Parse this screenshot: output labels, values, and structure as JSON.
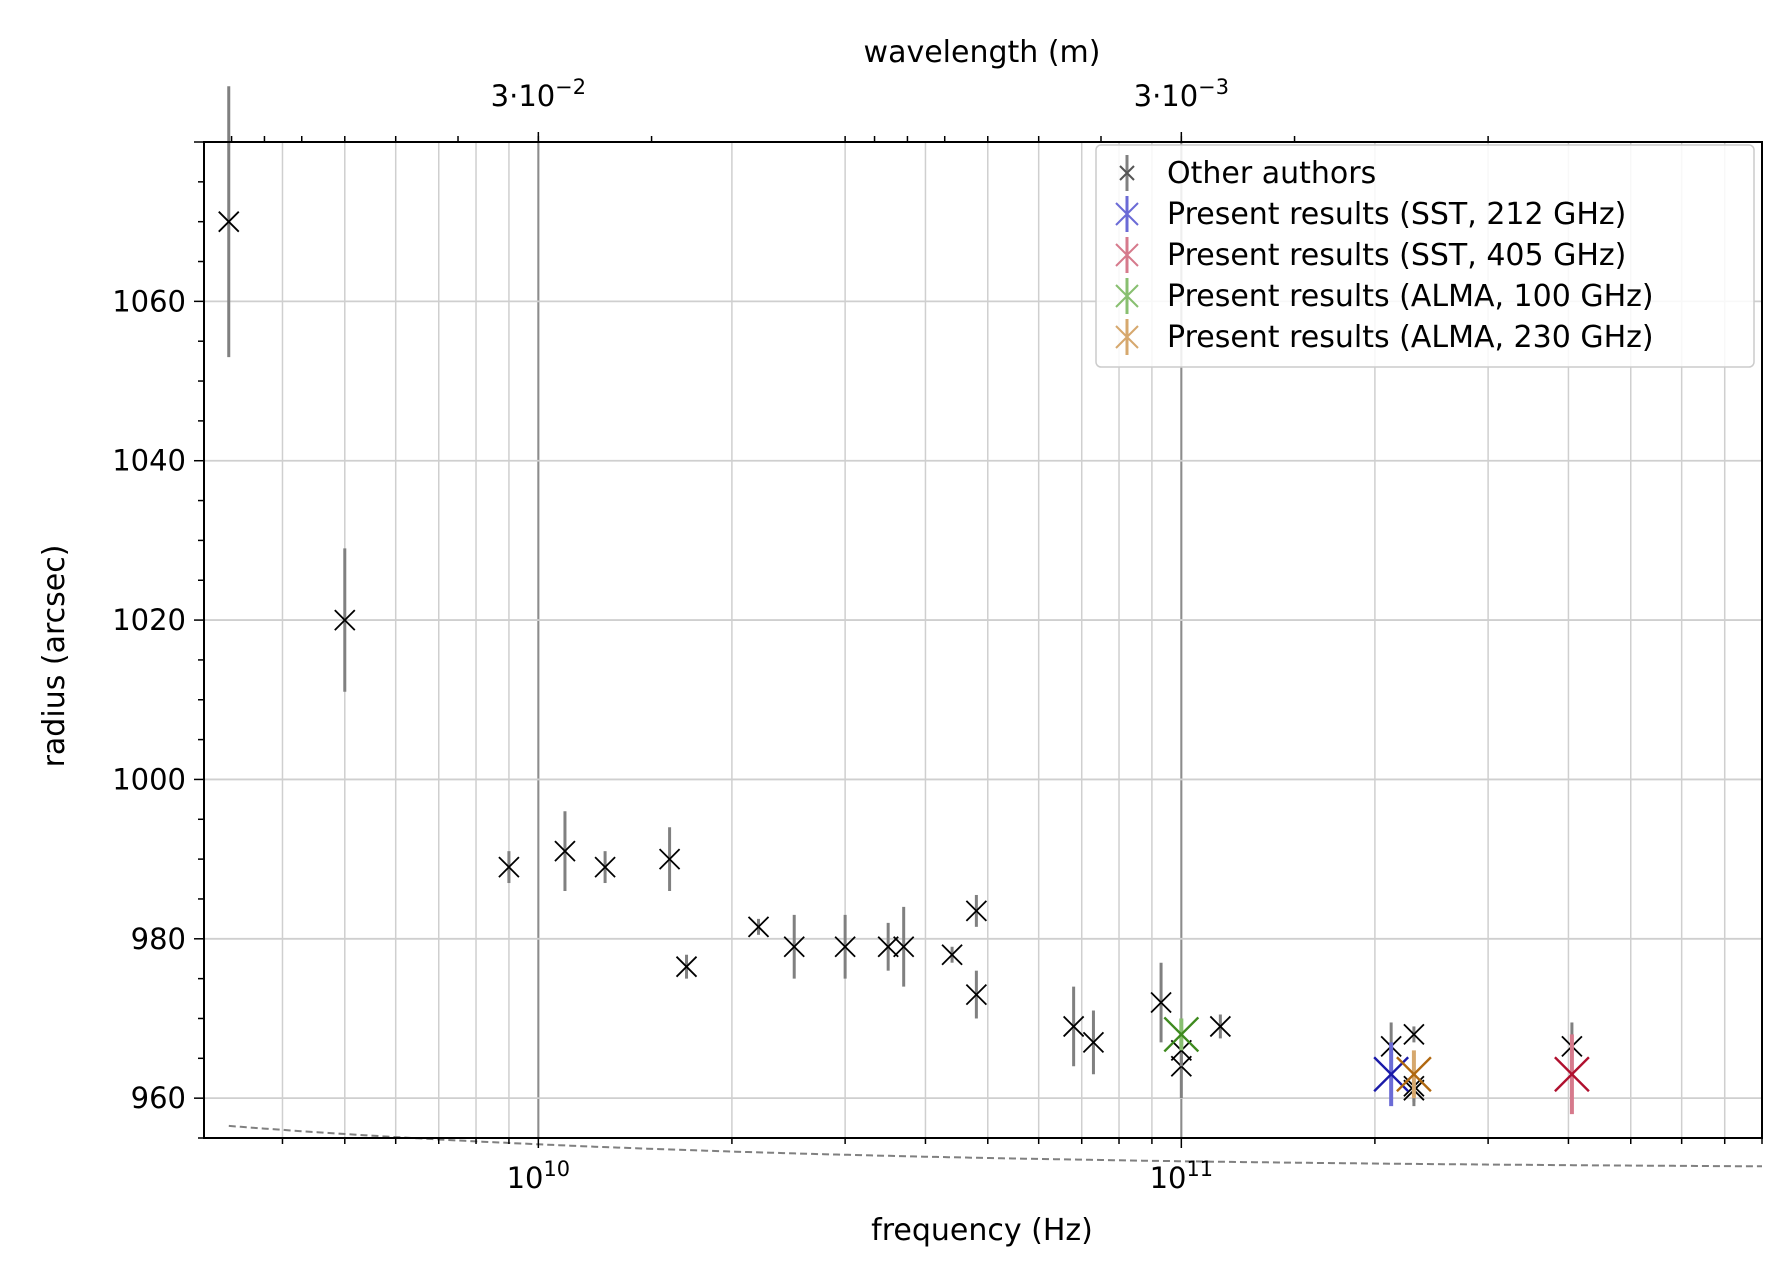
{
  "chart_data": {
    "type": "scatter",
    "xscale": "log",
    "xlim": [
      3300000000.0,
      800000000000.0
    ],
    "ylim": [
      955,
      1080
    ],
    "xlabel": "frequency (Hz)",
    "ylabel": "radius (arcsec)",
    "top_xlabel": "wavelength (m)",
    "y_ticks": [
      960,
      980,
      1000,
      1020,
      1040,
      1060
    ],
    "x_major_ticks": [
      {
        "value": 10000000000.0,
        "label_base": "10",
        "label_exp": "10"
      },
      {
        "value": 100000000000.0,
        "label_base": "10",
        "label_exp": "11"
      }
    ],
    "top_ticks": [
      {
        "freq": 10000000000.0,
        "label_base": "3·10",
        "label_exp": "−2"
      },
      {
        "freq": 100000000000.0,
        "label_base": "3·10",
        "label_exp": "−3"
      }
    ],
    "grid": true,
    "legend_position": "upper-right",
    "fit_curve": {
      "style": "dashed",
      "color": "#808080",
      "a": 951.1,
      "b": 96800000000.0,
      "p": 0.5
    },
    "series": [
      {
        "name": "Other authors",
        "color": "#000000",
        "errcolor": "#808080",
        "marker_size": "small",
        "points": [
          {
            "x": 3300000000.0,
            "y": 1070,
            "yerr": 17
          },
          {
            "x": 5000000000.0,
            "y": 1020,
            "yerr": 9
          },
          {
            "x": 9000000000.0,
            "y": 989,
            "yerr": 2
          },
          {
            "x": 11000000000.0,
            "y": 991,
            "yerr": 5
          },
          {
            "x": 12700000000.0,
            "y": 989,
            "yerr": 2
          },
          {
            "x": 16000000000.0,
            "y": 990,
            "yerr": 4
          },
          {
            "x": 17000000000.0,
            "y": 976.5,
            "yerr": 1.5
          },
          {
            "x": 22000000000.0,
            "y": 981.5,
            "yerr": 1
          },
          {
            "x": 25000000000.0,
            "y": 979,
            "yerr": 4
          },
          {
            "x": 30000000000.0,
            "y": 979,
            "yerr": 4
          },
          {
            "x": 35000000000.0,
            "y": 979,
            "yerr": 3
          },
          {
            "x": 37000000000.0,
            "y": 979,
            "yerr": 5
          },
          {
            "x": 44000000000.0,
            "y": 978,
            "yerr": 1
          },
          {
            "x": 48000000000.0,
            "y": 983.5,
            "yerr": 2
          },
          {
            "x": 48000000000.0,
            "y": 973,
            "yerr": 3
          },
          {
            "x": 68000000000.0,
            "y": 969,
            "yerr": 5
          },
          {
            "x": 73000000000.0,
            "y": 967,
            "yerr": 4
          },
          {
            "x": 93000000000.0,
            "y": 972,
            "yerr": 5
          },
          {
            "x": 100000000000.0,
            "y": 964,
            "yerr": 4
          },
          {
            "x": 100000000000.0,
            "y": 966,
            "yerr": 2
          },
          {
            "x": 115000000000.0,
            "y": 969,
            "yerr": 1.5
          },
          {
            "x": 212000000000.0,
            "y": 966.5,
            "yerr": 3
          },
          {
            "x": 230000000000.0,
            "y": 968,
            "yerr": 1
          },
          {
            "x": 230000000000.0,
            "y": 961,
            "yerr": 2
          },
          {
            "x": 230000000000.0,
            "y": 961.5,
            "yerr": 2
          },
          {
            "x": 405000000000.0,
            "y": 966.5,
            "yerr": 3
          }
        ]
      },
      {
        "name": "Present results (SST, 212 GHz)",
        "color": "#1a1aa8",
        "errcolor": "#6b6bd6",
        "marker_size": "large",
        "points": [
          {
            "x": 212000000000.0,
            "y": 963,
            "yerr": 4
          }
        ]
      },
      {
        "name": "Present results (SST, 405 GHz)",
        "color": "#b0102e",
        "errcolor": "#d67a8c",
        "marker_size": "large",
        "points": [
          {
            "x": 405000000000.0,
            "y": 963,
            "yerr": 5
          }
        ]
      },
      {
        "name": "Present results (ALMA, 100 GHz)",
        "color": "#3e8a1e",
        "errcolor": "#88bf70",
        "marker_size": "large",
        "points": [
          {
            "x": 100000000000.0,
            "y": 968,
            "yerr": 2
          }
        ]
      },
      {
        "name": "Present results (ALMA, 230 GHz)",
        "color": "#b06810",
        "errcolor": "#d6a86e",
        "marker_size": "large",
        "points": [
          {
            "x": 230000000000.0,
            "y": 963,
            "yerr": 3
          }
        ]
      }
    ]
  }
}
